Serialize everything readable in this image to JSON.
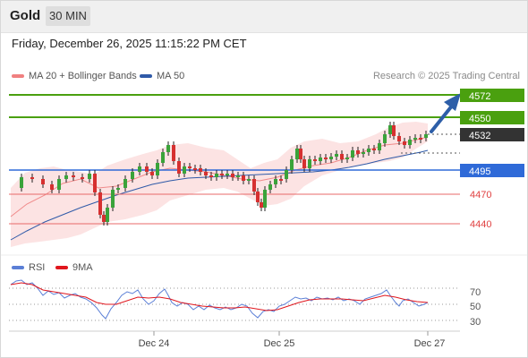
{
  "header": {
    "symbol": "Gold",
    "timeframe": "30 MIN"
  },
  "datetime": "Friday, December 26, 2025 11:15:22 PM CET",
  "legend": {
    "ma20": {
      "label": "MA 20 + Bollinger Bands",
      "color": "#f08080"
    },
    "ma50": {
      "label": "MA 50",
      "color": "#2f5aa8"
    }
  },
  "credit": "Research © 2025 Trading Central",
  "indicator_legend": {
    "rsi": {
      "label": "RSI",
      "color": "#5b7fd6"
    },
    "ma9": {
      "label": "9MA",
      "color": "#e0161d"
    }
  },
  "levels": [
    {
      "value": "4572",
      "kind": "resistance",
      "color": "#4aa00f"
    },
    {
      "value": "4550",
      "kind": "resistance",
      "color": "#4aa00f"
    },
    {
      "value": "4532",
      "kind": "last",
      "color": "#333333"
    },
    {
      "value": "4495",
      "kind": "pivot",
      "color": "#2f6ad8"
    },
    {
      "value": "4470",
      "kind": "support",
      "color": "#e04040"
    },
    {
      "value": "4440",
      "kind": "support",
      "color": "#e04040"
    }
  ],
  "rsi_levels": [
    "70",
    "50",
    "30"
  ],
  "x_ticks": [
    "Dec 24",
    "Dec 25",
    "Dec 27"
  ]
}
